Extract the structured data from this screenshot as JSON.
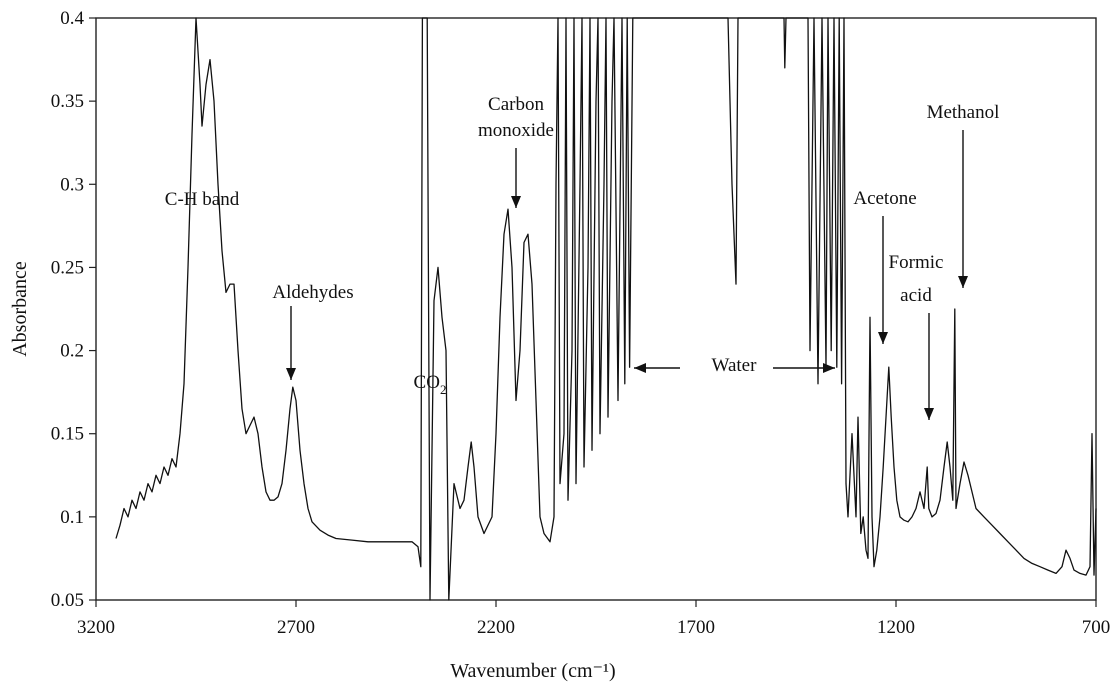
{
  "chart_data": {
    "type": "line",
    "xlabel": "Wavenumber (cm⁻¹)",
    "ylabel": "Absorbance",
    "xlim": [
      3200,
      700
    ],
    "ylim": [
      0.05,
      0.4
    ],
    "x_ticks": [
      "3200",
      "2700",
      "2200",
      "1700",
      "1200",
      "700"
    ],
    "y_ticks": [
      "0.4",
      "0.35",
      "0.3",
      "0.25",
      "0.2",
      "0.15",
      "0.1",
      "0.05"
    ],
    "legend": "none",
    "grid": false,
    "series": [
      {
        "points": [
          [
            3150,
            0.087
          ],
          [
            3140,
            0.095
          ],
          [
            3130,
            0.105
          ],
          [
            3120,
            0.1
          ],
          [
            3110,
            0.11
          ],
          [
            3100,
            0.105
          ],
          [
            3090,
            0.115
          ],
          [
            3080,
            0.11
          ],
          [
            3070,
            0.12
          ],
          [
            3060,
            0.115
          ],
          [
            3050,
            0.125
          ],
          [
            3040,
            0.12
          ],
          [
            3030,
            0.13
          ],
          [
            3020,
            0.125
          ],
          [
            3010,
            0.135
          ],
          [
            3000,
            0.13
          ],
          [
            2990,
            0.15
          ],
          [
            2980,
            0.18
          ],
          [
            2970,
            0.25
          ],
          [
            2960,
            0.33
          ],
          [
            2950,
            0.4
          ],
          [
            2940,
            0.36
          ],
          [
            2935,
            0.335
          ],
          [
            2925,
            0.36
          ],
          [
            2915,
            0.375
          ],
          [
            2905,
            0.35
          ],
          [
            2895,
            0.3
          ],
          [
            2885,
            0.26
          ],
          [
            2875,
            0.235
          ],
          [
            2865,
            0.24
          ],
          [
            2855,
            0.24
          ],
          [
            2845,
            0.2
          ],
          [
            2835,
            0.165
          ],
          [
            2825,
            0.15
          ],
          [
            2815,
            0.155
          ],
          [
            2805,
            0.16
          ],
          [
            2795,
            0.15
          ],
          [
            2785,
            0.13
          ],
          [
            2775,
            0.115
          ],
          [
            2765,
            0.11
          ],
          [
            2755,
            0.11
          ],
          [
            2745,
            0.112
          ],
          [
            2735,
            0.12
          ],
          [
            2725,
            0.14
          ],
          [
            2715,
            0.165
          ],
          [
            2708,
            0.178
          ],
          [
            2700,
            0.17
          ],
          [
            2690,
            0.14
          ],
          [
            2680,
            0.12
          ],
          [
            2670,
            0.105
          ],
          [
            2660,
            0.097
          ],
          [
            2640,
            0.092
          ],
          [
            2620,
            0.089
          ],
          [
            2600,
            0.087
          ],
          [
            2560,
            0.086
          ],
          [
            2520,
            0.085
          ],
          [
            2480,
            0.085
          ],
          [
            2440,
            0.085
          ],
          [
            2410,
            0.085
          ],
          [
            2395,
            0.082
          ],
          [
            2388,
            0.07
          ],
          [
            2384,
            0.4
          ],
          [
            2372,
            0.4
          ],
          [
            2365,
            0.05
          ],
          [
            2355,
            0.23
          ],
          [
            2345,
            0.25
          ],
          [
            2335,
            0.22
          ],
          [
            2325,
            0.2
          ],
          [
            2318,
            0.05
          ],
          [
            2305,
            0.12
          ],
          [
            2290,
            0.105
          ],
          [
            2280,
            0.11
          ],
          [
            2270,
            0.13
          ],
          [
            2262,
            0.145
          ],
          [
            2255,
            0.13
          ],
          [
            2245,
            0.1
          ],
          [
            2230,
            0.09
          ],
          [
            2210,
            0.1
          ],
          [
            2200,
            0.15
          ],
          [
            2190,
            0.22
          ],
          [
            2180,
            0.27
          ],
          [
            2170,
            0.285
          ],
          [
            2160,
            0.25
          ],
          [
            2150,
            0.17
          ],
          [
            2140,
            0.2
          ],
          [
            2130,
            0.265
          ],
          [
            2120,
            0.27
          ],
          [
            2110,
            0.24
          ],
          [
            2100,
            0.17
          ],
          [
            2090,
            0.1
          ],
          [
            2080,
            0.09
          ],
          [
            2065,
            0.085
          ],
          [
            2055,
            0.1
          ],
          [
            2050,
            0.3
          ],
          [
            2045,
            0.4
          ],
          [
            2040,
            0.12
          ],
          [
            2030,
            0.15
          ],
          [
            2025,
            0.4
          ],
          [
            2020,
            0.11
          ],
          [
            2010,
            0.2
          ],
          [
            2005,
            0.4
          ],
          [
            2000,
            0.12
          ],
          [
            1990,
            0.3
          ],
          [
            1985,
            0.4
          ],
          [
            1980,
            0.13
          ],
          [
            1970,
            0.25
          ],
          [
            1965,
            0.4
          ],
          [
            1960,
            0.14
          ],
          [
            1950,
            0.35
          ],
          [
            1945,
            0.4
          ],
          [
            1940,
            0.15
          ],
          [
            1930,
            0.3
          ],
          [
            1925,
            0.4
          ],
          [
            1920,
            0.16
          ],
          [
            1910,
            0.35
          ],
          [
            1905,
            0.4
          ],
          [
            1895,
            0.17
          ],
          [
            1885,
            0.4
          ],
          [
            1878,
            0.18
          ],
          [
            1872,
            0.4
          ],
          [
            1866,
            0.19
          ],
          [
            1858,
            0.4
          ],
          [
            1850,
            0.4
          ],
          [
            1840,
            0.4
          ],
          [
            1830,
            0.4
          ],
          [
            1620,
            0.4
          ],
          [
            1610,
            0.3
          ],
          [
            1600,
            0.24
          ],
          [
            1595,
            0.4
          ],
          [
            1480,
            0.4
          ],
          [
            1478,
            0.37
          ],
          [
            1475,
            0.4
          ],
          [
            1420,
            0.4
          ],
          [
            1415,
            0.2
          ],
          [
            1405,
            0.4
          ],
          [
            1395,
            0.18
          ],
          [
            1385,
            0.4
          ],
          [
            1375,
            0.19
          ],
          [
            1370,
            0.4
          ],
          [
            1362,
            0.2
          ],
          [
            1355,
            0.4
          ],
          [
            1348,
            0.19
          ],
          [
            1342,
            0.4
          ],
          [
            1336,
            0.18
          ],
          [
            1330,
            0.4
          ],
          [
            1325,
            0.12
          ],
          [
            1320,
            0.1
          ],
          [
            1310,
            0.15
          ],
          [
            1300,
            0.1
          ],
          [
            1295,
            0.16
          ],
          [
            1288,
            0.09
          ],
          [
            1282,
            0.1
          ],
          [
            1275,
            0.08
          ],
          [
            1270,
            0.075
          ],
          [
            1265,
            0.22
          ],
          [
            1260,
            0.1
          ],
          [
            1255,
            0.07
          ],
          [
            1248,
            0.08
          ],
          [
            1240,
            0.1
          ],
          [
            1232,
            0.13
          ],
          [
            1225,
            0.16
          ],
          [
            1218,
            0.19
          ],
          [
            1212,
            0.16
          ],
          [
            1205,
            0.13
          ],
          [
            1198,
            0.11
          ],
          [
            1190,
            0.1
          ],
          [
            1180,
            0.098
          ],
          [
            1170,
            0.097
          ],
          [
            1160,
            0.1
          ],
          [
            1150,
            0.105
          ],
          [
            1140,
            0.115
          ],
          [
            1130,
            0.105
          ],
          [
            1122,
            0.13
          ],
          [
            1118,
            0.105
          ],
          [
            1110,
            0.1
          ],
          [
            1100,
            0.102
          ],
          [
            1090,
            0.11
          ],
          [
            1080,
            0.13
          ],
          [
            1072,
            0.145
          ],
          [
            1065,
            0.13
          ],
          [
            1058,
            0.11
          ],
          [
            1053,
            0.225
          ],
          [
            1050,
            0.105
          ],
          [
            1040,
            0.12
          ],
          [
            1030,
            0.133
          ],
          [
            1020,
            0.125
          ],
          [
            1010,
            0.115
          ],
          [
            1000,
            0.105
          ],
          [
            980,
            0.1
          ],
          [
            960,
            0.095
          ],
          [
            940,
            0.09
          ],
          [
            920,
            0.085
          ],
          [
            900,
            0.08
          ],
          [
            880,
            0.075
          ],
          [
            860,
            0.072
          ],
          [
            840,
            0.07
          ],
          [
            820,
            0.068
          ],
          [
            800,
            0.066
          ],
          [
            785,
            0.07
          ],
          [
            775,
            0.08
          ],
          [
            765,
            0.075
          ],
          [
            755,
            0.068
          ],
          [
            740,
            0.066
          ],
          [
            725,
            0.065
          ],
          [
            715,
            0.07
          ],
          [
            710,
            0.15
          ],
          [
            705,
            0.065
          ],
          [
            700,
            0.105
          ]
        ]
      }
    ],
    "annotations": [
      {
        "lines": [
          "C-H band"
        ],
        "arrow": false
      },
      {
        "lines": [
          "Aldehydes"
        ],
        "arrow": true
      },
      {
        "lines": [
          "Carbon",
          "monoxide"
        ],
        "arrow": true
      },
      {
        "lines": [
          "CO",
          "2"
        ],
        "subscript": true,
        "arrow": false
      },
      {
        "lines": [
          "Water"
        ],
        "arrow": true
      },
      {
        "lines": [
          "Acetone"
        ],
        "arrow": true
      },
      {
        "lines": [
          "Formic",
          "acid"
        ],
        "arrow": true
      },
      {
        "lines": [
          "Methanol"
        ],
        "arrow": true
      }
    ]
  }
}
